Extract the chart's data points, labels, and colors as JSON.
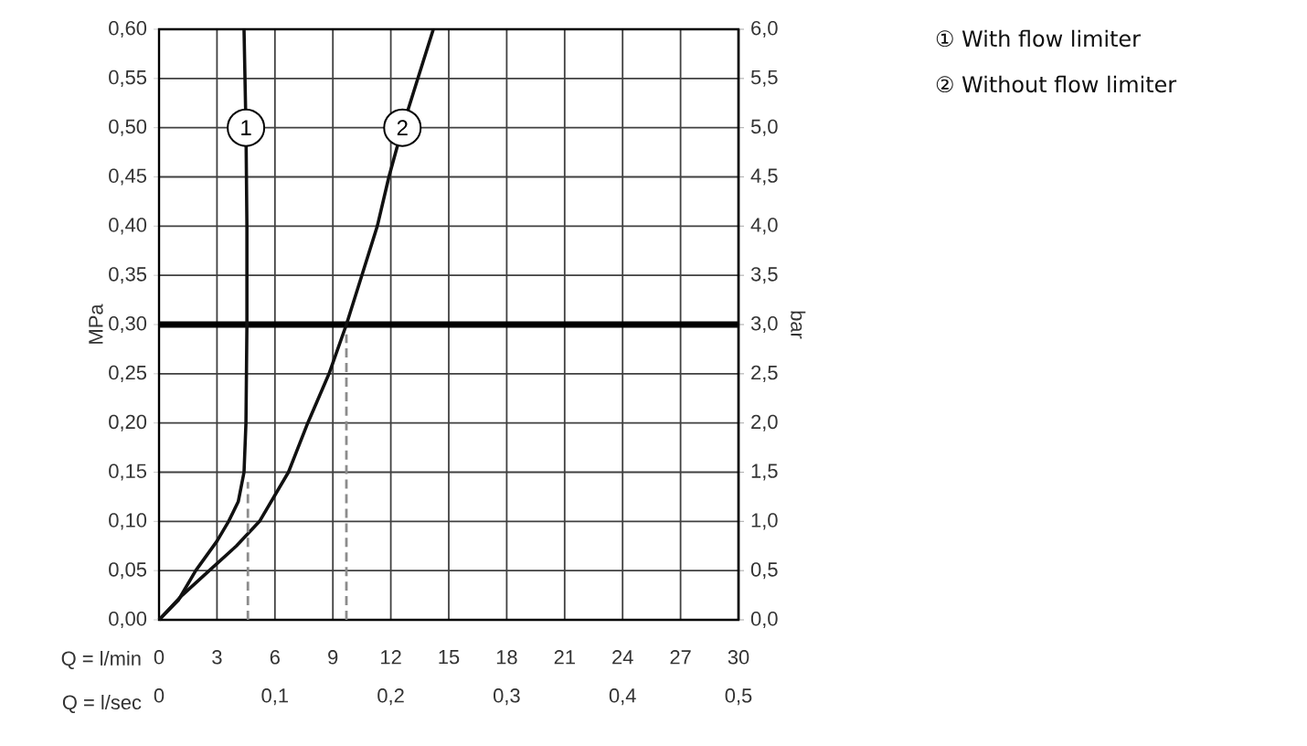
{
  "chart_data": {
    "type": "line",
    "xlabel": "Q = l/min",
    "ylabel": "MPa",
    "y2label": "bar",
    "x2label": "Q = l/sec",
    "xlim": [
      0,
      30
    ],
    "xticks": [
      0,
      3,
      6,
      9,
      12,
      15,
      18,
      21,
      24,
      27,
      30
    ],
    "ylim": [
      0,
      0.6
    ],
    "yticks": [
      {
        "value": 0,
        "label": "0,00"
      },
      {
        "value": 0.05,
        "label": "0,05"
      },
      {
        "value": 0.1,
        "label": "0,10"
      },
      {
        "value": 0.15,
        "label": "0,15"
      },
      {
        "value": 0.2,
        "label": "0,20"
      },
      {
        "value": 0.25,
        "label": "0,25"
      },
      {
        "value": 0.3,
        "label": "0,30"
      },
      {
        "value": 0.35,
        "label": "0,35"
      },
      {
        "value": 0.4,
        "label": "0,40"
      },
      {
        "value": 0.45,
        "label": "0,45"
      },
      {
        "value": 0.5,
        "label": "0,50"
      },
      {
        "value": 0.55,
        "label": "0,55"
      },
      {
        "value": 0.6,
        "label": "0,60"
      }
    ],
    "y2lim": [
      0,
      6
    ],
    "y2ticks": [
      {
        "value": 0,
        "label": "0,0"
      },
      {
        "value": 0.5,
        "label": "0,5"
      },
      {
        "value": 1,
        "label": "1,0"
      },
      {
        "value": 1.5,
        "label": "1,5"
      },
      {
        "value": 2,
        "label": "2,0"
      },
      {
        "value": 2.5,
        "label": "2,5"
      },
      {
        "value": 3,
        "label": "3,0"
      },
      {
        "value": 3.5,
        "label": "3,5"
      },
      {
        "value": 4,
        "label": "4,0"
      },
      {
        "value": 4.5,
        "label": "4,5"
      },
      {
        "value": 5,
        "label": "5,0"
      },
      {
        "value": 5.5,
        "label": "5,5"
      },
      {
        "value": 6,
        "label": "6,0"
      }
    ],
    "x2lim": [
      0,
      0.5
    ],
    "x2ticks": [
      0,
      {
        "value": 0.1,
        "label": "0,1"
      },
      {
        "value": 0.2,
        "label": "0,2"
      },
      {
        "value": 0.3,
        "label": "0,3"
      },
      {
        "value": 0.4,
        "label": "0,4"
      },
      {
        "value": 0.5,
        "label": "0,5"
      }
    ],
    "grid": true,
    "legend": "top right",
    "series": [
      {
        "name": "① With flow limiter",
        "color": "#111111",
        "x": [
          0,
          1.0,
          1.9,
          3.0,
          3.6,
          4.1,
          4.4,
          4.5,
          4.55,
          4.55,
          4.5,
          4.4
        ],
        "values": [
          0,
          0.02,
          0.05,
          0.08,
          0.1,
          0.12,
          0.15,
          0.2,
          0.3,
          0.4,
          0.5,
          0.6
        ]
      },
      {
        "name": "② Without flow limiter",
        "color": "#111111",
        "x": [
          0,
          1.2,
          2.6,
          4.0,
          5.2,
          6.7,
          7.7,
          8.8,
          9.7,
          10.5,
          11.3,
          11.9,
          12.6,
          13.4,
          14.2
        ],
        "values": [
          0,
          0.025,
          0.05,
          0.075,
          0.1,
          0.15,
          0.2,
          0.25,
          0.3,
          0.35,
          0.4,
          0.45,
          0.5,
          0.55,
          0.6
        ]
      },
      {
        "color": "#8c8c8c",
        "line_style": "dashed",
        "x": [
          4.6,
          4.6
        ],
        "values": [
          0,
          0.14
        ]
      },
      {
        "color": "#8c8c8c",
        "line_style": "dashed",
        "x": [
          9.7,
          9.7
        ],
        "values": [
          0,
          0.29
        ]
      }
    ],
    "ref_lines": [
      {
        "axis": "y",
        "value": 0.3,
        "color": "#000000"
      }
    ],
    "annotations": [
      {
        "text": "1",
        "x": 4.5,
        "y": 0.5
      },
      {
        "text": "2",
        "x": 12.6,
        "y": 0.5
      }
    ]
  }
}
